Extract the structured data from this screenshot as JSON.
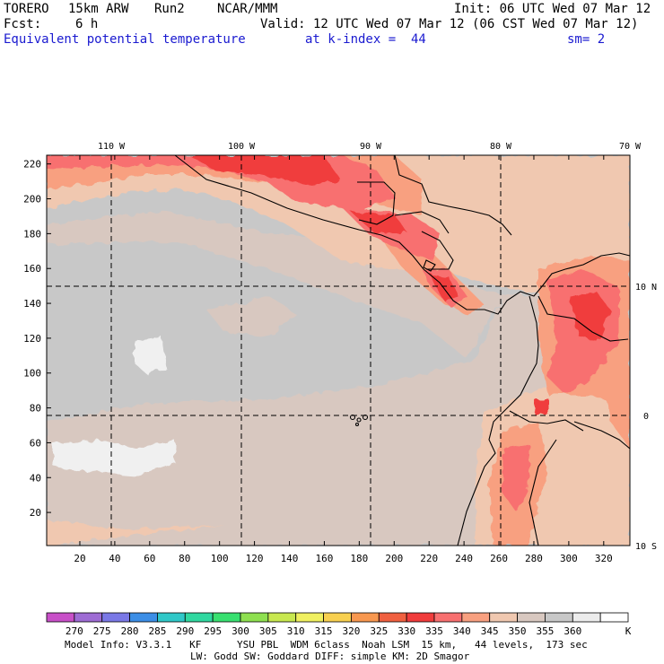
{
  "header": {
    "model": "TORERO",
    "resolution": "15km ARW",
    "run": "Run2",
    "org": "NCAR/MMM",
    "init": "Init: 06 UTC Wed 07 Mar 12",
    "fcst_label": "Fcst:",
    "fcst_value": "6 h",
    "valid": "Valid: 12 UTC Wed 07 Mar 12 (06 CST Wed 07 Mar 12)",
    "field": "Equivalent potential temperature",
    "level": "at k-index =  44",
    "smoothing": "sm= 2"
  },
  "footer": {
    "line1": "Model Info: V3.3.1   KF      YSU PBL  WDM 6class  Noah LSM  15 km,   44 levels,  173 sec",
    "line2": "LW: Godd SW: Goddard DIFF: simple KM: 2D Smagor"
  },
  "chart_data": {
    "type": "heatmap",
    "title": "Equivalent potential temperature",
    "units": "K",
    "x_ticks": [
      20,
      40,
      60,
      80,
      100,
      120,
      140,
      160,
      180,
      200,
      220,
      240,
      260,
      280,
      300,
      320
    ],
    "y_ticks": [
      20,
      40,
      60,
      80,
      100,
      120,
      140,
      160,
      180,
      200,
      220
    ],
    "xlim": [
      1,
      335
    ],
    "ylim": [
      1,
      225
    ],
    "lon_labels": [
      "110 W",
      "100 W",
      "90 W",
      "80 W",
      "70 W"
    ],
    "lat_labels": [
      "10 N",
      "0",
      "10 S"
    ],
    "colorbar": {
      "levels": [
        "270",
        "275",
        "280",
        "285",
        "290",
        "295",
        "300",
        "305",
        "310",
        "315",
        "320",
        "325",
        "330",
        "335",
        "340",
        "345",
        "350",
        "355",
        "360"
      ],
      "unit_label": "K",
      "colors": [
        "#c850c8",
        "#9e6cd4",
        "#7a78e6",
        "#3c8ee6",
        "#30c8c8",
        "#30d8a0",
        "#38e070",
        "#8ee050",
        "#c8e850",
        "#f0f060",
        "#f8d050",
        "#f89850",
        "#f06040",
        "#f03c3c",
        "#f87070",
        "#f8a080",
        "#f0c8b0",
        "#d8c8c0",
        "#c8c8c8",
        "#ececec",
        "#ffffff"
      ]
    },
    "field_colors": {
      "ocean_gray": "#c8c8c8",
      "ocean_taupe": "#d8c8c0",
      "light_peach": "#f0c8b0",
      "salmon": "#f8a080",
      "coral": "#f87070",
      "red": "#f03c3c",
      "white": "#f0f0f0"
    }
  }
}
